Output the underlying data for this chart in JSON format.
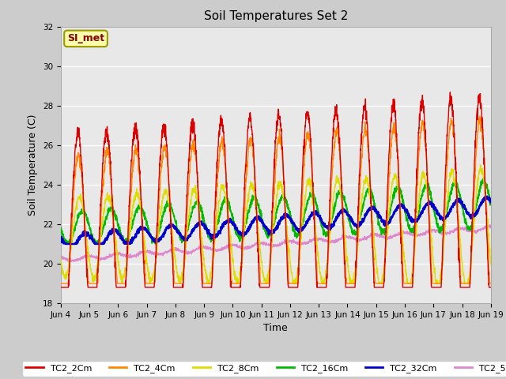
{
  "title": "Soil Temperatures Set 2",
  "xlabel": "Time",
  "ylabel": "Soil Temperature (C)",
  "ylim": [
    18,
    32
  ],
  "yticks": [
    18,
    20,
    22,
    24,
    26,
    28,
    30,
    32
  ],
  "series_colors": {
    "TC2_2Cm": "#dd0000",
    "TC2_4Cm": "#ff8800",
    "TC2_8Cm": "#dddd00",
    "TC2_16Cm": "#00bb00",
    "TC2_32Cm": "#0000cc",
    "TC2_50Cm": "#dd88cc"
  },
  "annotation_text": "SI_met",
  "annotation_box_color": "#ffffaa",
  "annotation_box_edge": "#999900",
  "annotation_text_color": "#880000",
  "fig_bg": "#cccccc",
  "plot_bg": "#e8e8e8",
  "n_days": 15,
  "start_day": 4,
  "pts_per_day": 144
}
